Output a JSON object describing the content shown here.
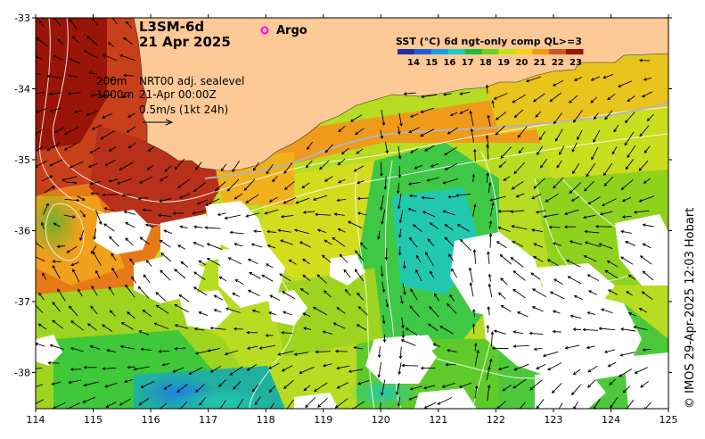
{
  "title": {
    "product": "L3SM-6d",
    "date": "21 Apr 2025"
  },
  "legend": {
    "argo_label": "Argo",
    "argo_color": "#ff00ff",
    "colorbar_title": "SST (°C) 6d ngt-only comp QL>=3",
    "colorbar_ticks": [
      "14",
      "15",
      "16",
      "17",
      "18",
      "19",
      "20",
      "21",
      "22",
      "23"
    ],
    "colorbar_colors": [
      "#1f2f9f",
      "#1e5ed6",
      "#1a9be6",
      "#22c9c0",
      "#1fb83a",
      "#6cd21a",
      "#c4e21a",
      "#f5d21a",
      "#f09a14",
      "#d2551a",
      "#9a1408"
    ]
  },
  "annotations": {
    "contour_200": "200m",
    "contour_1000": "1000m",
    "sealevel_label": "NRT00 adj. sealevel",
    "sealevel_time": "21-Apr 00:00Z",
    "vector_scale": "0.5m/s (1kt 24h)"
  },
  "axes": {
    "lon_ticks": [
      "114",
      "115",
      "116",
      "117",
      "118",
      "119",
      "120",
      "121",
      "122",
      "123",
      "124",
      "125"
    ],
    "lat_ticks": [
      "-33",
      "-34",
      "-35",
      "-36",
      "-37",
      "-38"
    ]
  },
  "credit": "© IMOS 29-Apr-2025 12:03 Hobart",
  "colors": {
    "land": "#fdc997",
    "cloud": "#ffffff",
    "current_arrow": "#000000",
    "contour": "#ffffff"
  }
}
